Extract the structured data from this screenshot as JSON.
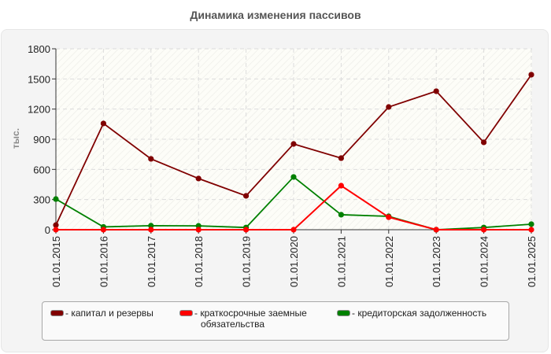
{
  "title": "Динамика изменения пассивов",
  "y_axis_label": "тыс.",
  "legend": [
    {
      "label": "- капитал и резервы",
      "label2": "",
      "color": "#800000"
    },
    {
      "label": "- краткосрочные заемные",
      "label2": "обязательства",
      "color": "#ff0000"
    },
    {
      "label": "- кредиторская задолженность",
      "label2": "",
      "color": "#008000"
    }
  ],
  "chart_data": {
    "type": "line",
    "title": "Динамика изменения пассивов",
    "xlabel": "",
    "ylabel": "тыс.",
    "ylim": [
      0,
      1800
    ],
    "yticks": [
      0,
      300,
      600,
      900,
      1200,
      1500,
      1800
    ],
    "grid": true,
    "legend_position": "bottom",
    "x": [
      "01.01.2015",
      "01.01.2016",
      "01.01.2017",
      "01.01.2018",
      "01.01.2019",
      "01.01.2020",
      "01.01.2021",
      "01.01.2022",
      "01.01.2023",
      "01.01.2024",
      "01.01.2025"
    ],
    "series": [
      {
        "name": "капитал и резервы",
        "color": "#800000",
        "values": [
          46,
          1057,
          705,
          509,
          337,
          853,
          712,
          1221,
          1378,
          869,
          1542
        ]
      },
      {
        "name": "краткосрочные заемные обязательства",
        "color": "#ff0000",
        "values": [
          0,
          0,
          0,
          0,
          0,
          0,
          438,
          125,
          0,
          0,
          0
        ]
      },
      {
        "name": "кредиторская задолженность",
        "color": "#008000",
        "values": [
          305,
          28,
          40,
          38,
          22,
          525,
          149,
          133,
          0,
          22,
          55
        ]
      }
    ]
  }
}
